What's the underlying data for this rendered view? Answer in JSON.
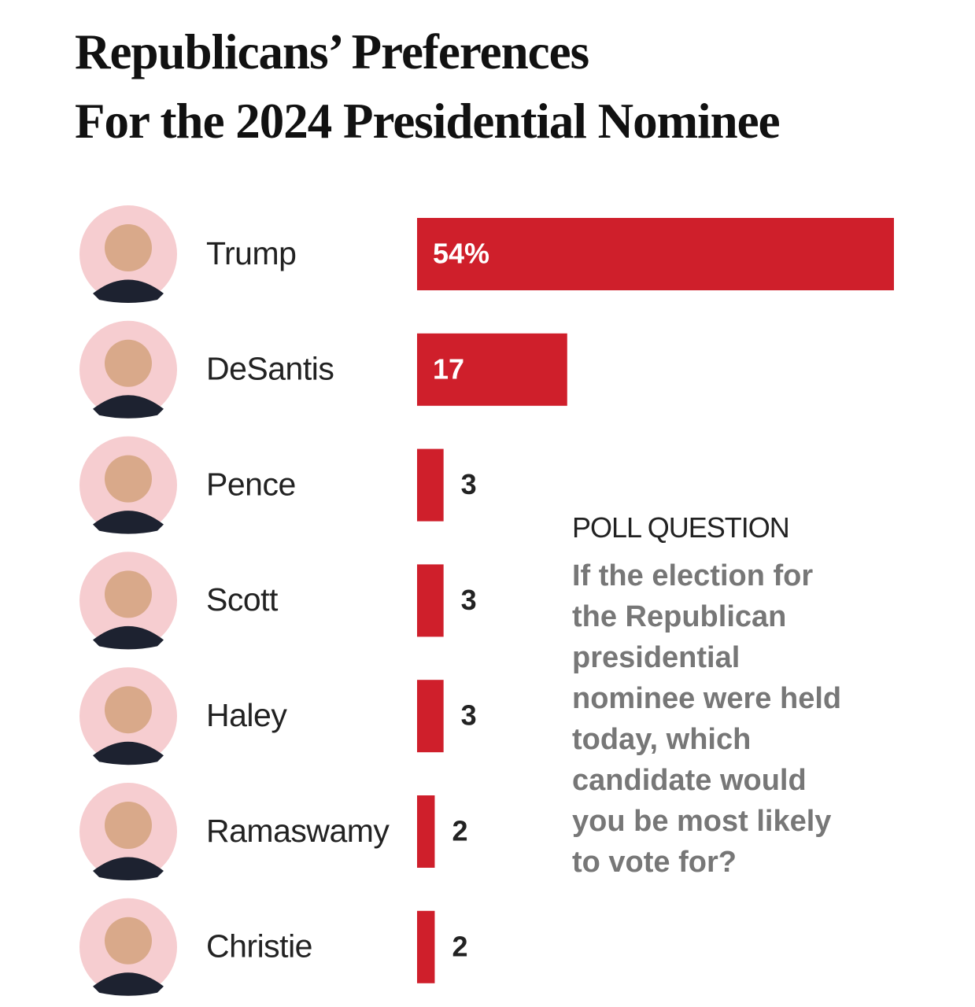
{
  "chart_data": {
    "type": "bar",
    "orientation": "horizontal",
    "title": [
      "Republicans’ Preferences",
      "For the 2024 Presidential Nominee"
    ],
    "categories": [
      "Trump",
      "DeSantis",
      "Pence",
      "Scott",
      "Haley",
      "Ramaswamy",
      "Christie"
    ],
    "values": [
      54,
      17,
      3,
      3,
      3,
      2,
      2
    ],
    "value_labels": [
      "54%",
      "17",
      "3",
      "3",
      "3",
      "2",
      "2"
    ],
    "color": "#cf1f2b",
    "annotation": {
      "heading": "POLL QUESTION",
      "text": "If the election for the Republican presidential nominee were held today, which candidate would you be most likely to vote for?"
    }
  }
}
